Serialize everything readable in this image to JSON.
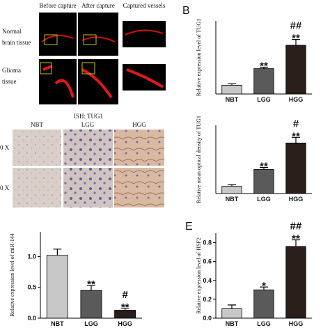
{
  "capture_panel": {
    "columns": [
      "Before capture",
      "After capture",
      "Captured vessels"
    ],
    "rows": [
      [
        "Normal",
        "brain tissue"
      ],
      [
        "Glioma",
        "tissue"
      ]
    ]
  },
  "ish_panel": {
    "title": "ISH: TUG1",
    "columns": [
      "NBT",
      "LGG",
      "HGG"
    ],
    "rows": [
      "0 X",
      "0 X"
    ]
  },
  "chart_data": [
    {
      "type": "bar",
      "panel_label": "B",
      "ylabel": "Relative expression level of TUG1",
      "categories": [
        "NBT",
        "LGG",
        "HGG"
      ],
      "values": [
        0.9,
        2.6,
        5.0
      ],
      "errors": [
        0.15,
        0.15,
        0.6
      ],
      "colors": [
        "#c8c8c8",
        "#5a5a5a",
        "#2a1e1a"
      ],
      "ylim": [
        0,
        7.5
      ],
      "annotations": [
        null,
        [
          "**"
        ],
        [
          "##",
          "**"
        ]
      ]
    },
    {
      "type": "bar",
      "ylabel": "Relative mean optical density of TUG1",
      "categories": [
        "NBT",
        "LGG",
        "HGG"
      ],
      "values": [
        0.9,
        3.0,
        6.3
      ],
      "errors": [
        0.2,
        0.25,
        0.7
      ],
      "colors": [
        "#c8c8c8",
        "#5a5a5a",
        "#2a1e1a"
      ],
      "ylim": [
        0,
        8.5
      ],
      "annotations": [
        null,
        [
          "**"
        ],
        [
          "#",
          "**"
        ]
      ]
    },
    {
      "type": "bar",
      "ylabel": "Relative expression level of miR-144",
      "categories": [
        "NBT",
        "LGG",
        "HGG"
      ],
      "values": [
        1.02,
        0.45,
        0.13
      ],
      "errors": [
        0.1,
        0.08,
        0.03
      ],
      "colors": [
        "#c8c8c8",
        "#5a5a5a",
        "#2a1e1a"
      ],
      "ylim": [
        0,
        1.4
      ],
      "yticks": [
        {
          "value": 0,
          "label": "0.0"
        },
        0.5,
        {
          "value": 1,
          "label": "1.0"
        }
      ],
      "annotations": [
        null,
        [
          "**"
        ],
        [
          "#",
          "**"
        ]
      ]
    },
    {
      "type": "bar",
      "panel_label": "E",
      "ylabel": "Relative expression level of HSF2",
      "categories": [
        "NBT",
        "LGG",
        "HGG"
      ],
      "values": [
        0.1,
        0.3,
        0.76
      ],
      "errors": [
        0.04,
        0.03,
        0.07
      ],
      "colors": [
        "#c8c8c8",
        "#5a5a5a",
        "#2a1e1a"
      ],
      "ylim": [
        0,
        0.9
      ],
      "yticks": [
        {
          "value": 0,
          "label": "0.0"
        },
        0.2,
        0.4,
        0.6,
        0.8
      ],
      "annotations": [
        null,
        [
          "*"
        ],
        [
          "##",
          "**"
        ]
      ]
    }
  ]
}
